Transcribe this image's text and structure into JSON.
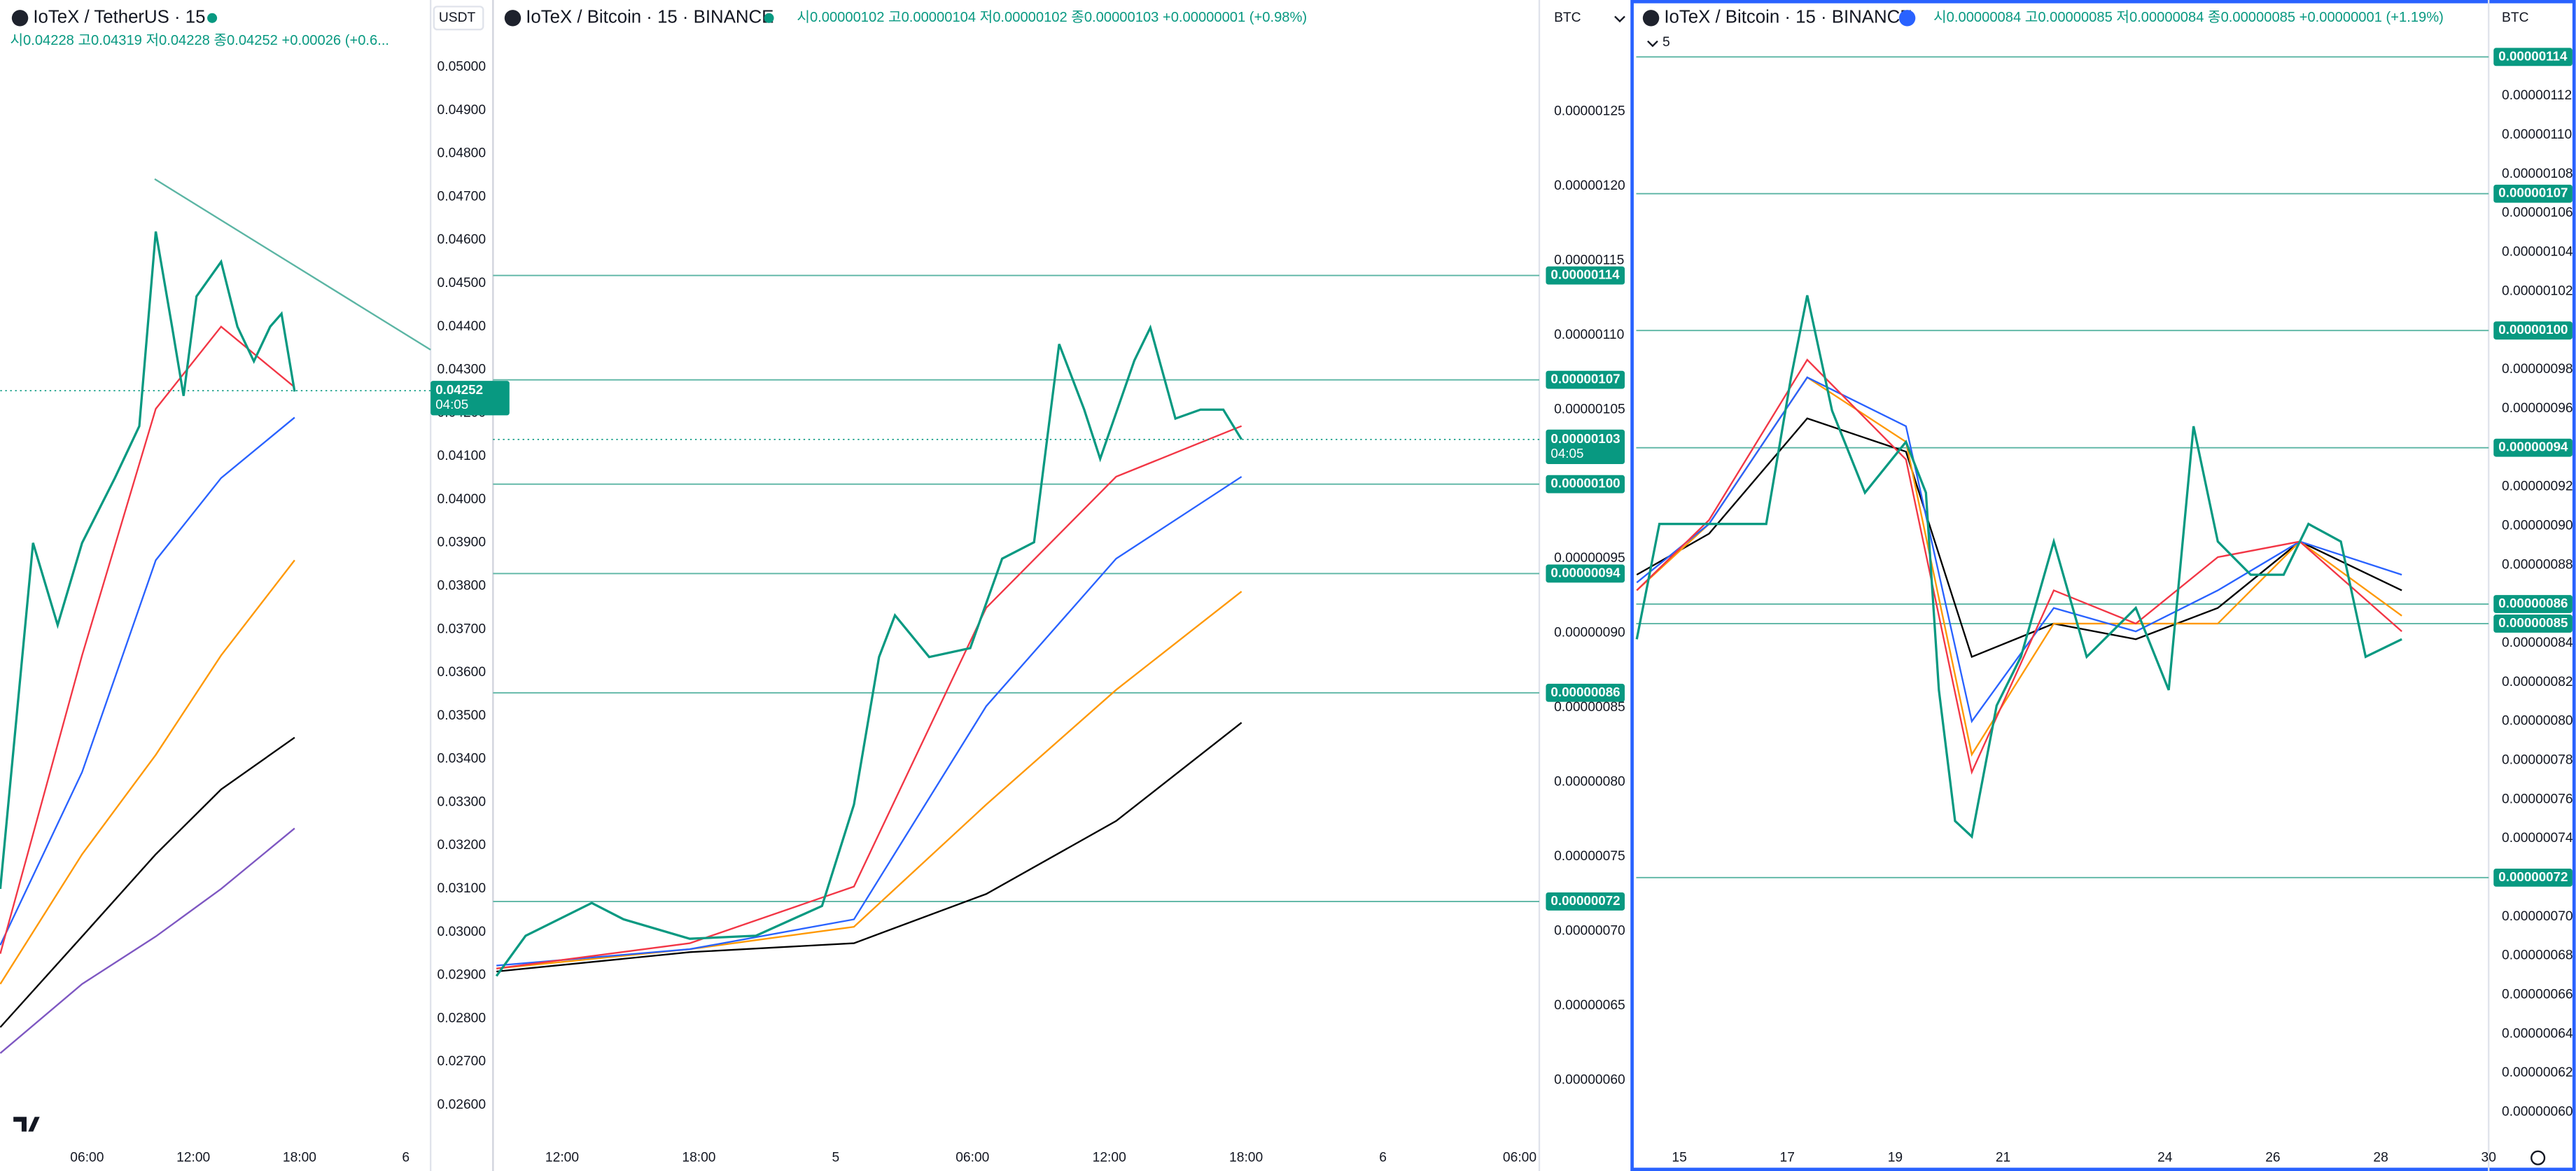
{
  "chart_data": [
    {
      "type": "line",
      "title": "IoTeX / TetherUS · 15",
      "subtitle": "시0.04228 고0.04319 저0.04228 종0.04252 +0.00026 (+0.6...",
      "currency": "USDT",
      "xlim": [
        1.1,
        25.4
      ],
      "ylim": [
        0.02516,
        0.05087
      ],
      "xticks": [
        {
          "value": 6,
          "label": "06:00"
        },
        {
          "value": 12,
          "label": "12:00"
        },
        {
          "value": 18,
          "label": "18:00"
        },
        {
          "value": 24,
          "label": "6"
        }
      ],
      "yticks": [
        {
          "value": 0.05,
          "label": "0.05000"
        },
        {
          "value": 0.049,
          "label": "0.04900"
        },
        {
          "value": 0.048,
          "label": "0.04800"
        },
        {
          "value": 0.047,
          "label": "0.04700"
        },
        {
          "value": 0.046,
          "label": "0.04600"
        },
        {
          "value": 0.045,
          "label": "0.04500"
        },
        {
          "value": 0.044,
          "label": "0.04400"
        },
        {
          "value": 0.043,
          "label": "0.04300"
        },
        {
          "value": 0.042,
          "label": "0.04200"
        },
        {
          "value": 0.041,
          "label": "0.04100"
        },
        {
          "value": 0.04,
          "label": "0.04000"
        },
        {
          "value": 0.039,
          "label": "0.03900"
        },
        {
          "value": 0.038,
          "label": "0.03800"
        },
        {
          "value": 0.037,
          "label": "0.03700"
        },
        {
          "value": 0.036,
          "label": "0.03600"
        },
        {
          "value": 0.035,
          "label": "0.03500"
        },
        {
          "value": 0.034,
          "label": "0.03400"
        },
        {
          "value": 0.033,
          "label": "0.03300"
        },
        {
          "value": 0.032,
          "label": "0.03200"
        },
        {
          "value": 0.031,
          "label": "0.03100"
        },
        {
          "value": 0.03,
          "label": "0.03000"
        },
        {
          "value": 0.029,
          "label": "0.02900"
        },
        {
          "value": 0.028,
          "label": "0.02800"
        },
        {
          "value": 0.027,
          "label": "0.02700"
        },
        {
          "value": 0.026,
          "label": "0.02600"
        }
      ],
      "series": [
        {
          "color": "#7e57c2",
          "x": [
            1.1,
            5.72,
            9.88,
            13.57,
            17.72
          ],
          "values": [
            0.0272,
            0.0288,
            0.0299,
            0.031,
            0.0324
          ]
        },
        {
          "color": "#000000",
          "x": [
            1.1,
            5.72,
            9.88,
            13.57,
            17.72
          ],
          "values": [
            0.0278,
            0.0299,
            0.0318,
            0.0333,
            0.0345
          ]
        },
        {
          "color": "#ff9800",
          "x": [
            1.1,
            5.72,
            9.88,
            13.57,
            17.72
          ],
          "values": [
            0.0288,
            0.0318,
            0.0341,
            0.0364,
            0.0386
          ]
        },
        {
          "color": "#2962ff",
          "x": [
            1.1,
            5.72,
            9.88,
            13.57,
            17.72
          ],
          "values": [
            0.0297,
            0.0337,
            0.0386,
            0.0405,
            0.0419
          ]
        },
        {
          "color": "#f23645",
          "x": [
            1.1,
            5.72,
            9.88,
            13.57,
            17.72
          ],
          "values": [
            0.0295,
            0.0364,
            0.0421,
            0.044,
            0.0426
          ]
        },
        {
          "color": "#089981",
          "x": [
            1.1,
            2.95,
            4.34,
            5.72,
            7.57,
            8.95,
            9.88,
            10.8,
            11.45,
            12.18,
            13.57,
            14.49,
            15.42,
            16.34,
            16.98,
            17.72
          ],
          "values": [
            0.031,
            0.039,
            0.0371,
            0.039,
            0.0405,
            0.0417,
            0.0462,
            0.044,
            0.0424,
            0.0447,
            0.0455,
            0.044,
            0.0432,
            0.044,
            0.0443,
            0.0425
          ]
        }
      ],
      "price_lines": [],
      "current": {
        "value": 0.04252,
        "label": "0.04252",
        "countdown": "04:05"
      }
    },
    {
      "type": "line",
      "title": "IoTeX / Bitcoin · 15 · BINANCE",
      "subtitle": "시0.00000102 고0.00000104 저0.00000102 종0.00000103 +0.00000001 (+0.98%)",
      "currency": "BTC",
      "xlim": [
        8.97,
        54.86
      ],
      "ylim": [
        5.59e-07,
        1.305e-06
      ],
      "xticks": [
        {
          "value": 12,
          "label": "12:00"
        },
        {
          "value": 18,
          "label": "18:00"
        },
        {
          "value": 24,
          "label": "5"
        },
        {
          "value": 30,
          "label": "06:00"
        },
        {
          "value": 36,
          "label": "12:00"
        },
        {
          "value": 42,
          "label": "18:00"
        },
        {
          "value": 48,
          "label": "6"
        },
        {
          "value": 54,
          "label": "06:00"
        }
      ],
      "yticks": [
        {
          "value": 1.25e-06,
          "label": "0.00000125"
        },
        {
          "value": 1.2e-06,
          "label": "0.00000120"
        },
        {
          "value": 1.15e-06,
          "label": "0.00000115"
        },
        {
          "value": 1.1e-06,
          "label": "0.00000110"
        },
        {
          "value": 1.05e-06,
          "label": "0.00000105"
        },
        {
          "value": 9.5e-07,
          "label": "0.00000095"
        },
        {
          "value": 9e-07,
          "label": "0.00000090"
        },
        {
          "value": 8.5e-07,
          "label": "0.00000085"
        },
        {
          "value": 8e-07,
          "label": "0.00000080"
        },
        {
          "value": 7.5e-07,
          "label": "0.00000075"
        },
        {
          "value": 7e-07,
          "label": "0.00000070"
        },
        {
          "value": 6.5e-07,
          "label": "0.00000065"
        },
        {
          "value": 6e-07,
          "label": "0.00000060"
        }
      ],
      "series": [
        {
          "color": "#000000",
          "x": [
            9.12,
            17.6,
            24.8,
            30.6,
            36.3,
            41.8
          ],
          "values": [
            6.73e-07,
            6.86e-07,
            6.92e-07,
            7.25e-07,
            7.74e-07,
            8.4e-07
          ]
        },
        {
          "color": "#ff9800",
          "x": [
            9.12,
            17.6,
            24.8,
            30.6,
            36.3,
            41.8
          ],
          "values": [
            6.75e-07,
            6.88e-07,
            7.03e-07,
            7.85e-07,
            8.62e-07,
            9.28e-07
          ]
        },
        {
          "color": "#2962ff",
          "x": [
            9.12,
            17.6,
            24.8,
            30.6,
            36.3,
            41.8
          ],
          "values": [
            6.77e-07,
            6.88e-07,
            7.08e-07,
            8.51e-07,
            9.5e-07,
            1.005e-06
          ]
        },
        {
          "color": "#f23645",
          "x": [
            9.12,
            17.6,
            24.8,
            30.6,
            36.3,
            41.8
          ],
          "values": [
            6.75e-07,
            6.92e-07,
            7.3e-07,
            9.17e-07,
            1.005e-06,
            1.039e-06
          ]
        },
        {
          "color": "#089981",
          "x": [
            9.12,
            10.4,
            13.3,
            14.7,
            17.6,
            20.5,
            23.4,
            24.8,
            25.9,
            26.6,
            28.1,
            29.9,
            31.3,
            32.7,
            33.8,
            34.9,
            35.6,
            37.1,
            37.8,
            38.9,
            40.0,
            41.0,
            41.8
          ],
          "values": [
            6.7e-07,
            6.97e-07,
            7.19e-07,
            7.08e-07,
            6.95e-07,
            6.97e-07,
            7.17e-07,
            7.85e-07,
            8.84e-07,
            9.12e-07,
            8.84e-07,
            8.9e-07,
            9.5e-07,
            9.61e-07,
            1.094e-06,
            1.05e-06,
            1.017e-06,
            1.083e-06,
            1.105e-06,
            1.044e-06,
            1.05e-06,
            1.05e-06,
            1.03e-06
          ]
        }
      ],
      "price_lines": [
        {
          "value": 1.14e-06,
          "label": "0.00000114"
        },
        {
          "value": 1.07e-06,
          "label": "0.00000107"
        },
        {
          "value": 1e-06,
          "label": "0.00000100"
        },
        {
          "value": 9.4e-07,
          "label": "0.00000094"
        },
        {
          "value": 8.6e-07,
          "label": "0.00000086"
        },
        {
          "value": 7.2e-07,
          "label": "0.00000072"
        }
      ],
      "current": {
        "value": 1.03e-06,
        "label": "0.00000103",
        "countdown": "04:05"
      }
    },
    {
      "type": "line",
      "title": "IoTeX / Bitcoin · 15 · BINANCE",
      "subtitle": "시0.00000084 고0.00000085 저0.00000084 종0.00000085 +0.00000001 (+1.19%)",
      "currency": "BTC",
      "interval": "5",
      "xlim": [
        14.2,
        30.0
      ],
      "ylim": [
        5.85e-07,
        1.154e-06
      ],
      "xticks": [
        15,
        17,
        19,
        21,
        24,
        26,
        28,
        30
      ],
      "yticks": [
        {
          "value": 1.12e-06,
          "label": "0.00000112"
        },
        {
          "value": 1.1e-06,
          "label": "0.00000110"
        },
        {
          "value": 1.08e-06,
          "label": "0.00000108"
        },
        {
          "value": 1.06e-06,
          "label": "0.00000106"
        },
        {
          "value": 1.04e-06,
          "label": "0.00000104"
        },
        {
          "value": 1.02e-06,
          "label": "0.00000102"
        },
        {
          "value": 9.8e-07,
          "label": "0.00000098"
        },
        {
          "value": 9.6e-07,
          "label": "0.00000096"
        },
        {
          "value": 9.2e-07,
          "label": "0.00000092"
        },
        {
          "value": 9e-07,
          "label": "0.00000090"
        },
        {
          "value": 8.8e-07,
          "label": "0.00000088"
        },
        {
          "value": 8.4e-07,
          "label": "0.00000084"
        },
        {
          "value": 8.2e-07,
          "label": "0.00000082"
        },
        {
          "value": 8e-07,
          "label": "0.00000080"
        },
        {
          "value": 7.8e-07,
          "label": "0.00000078"
        },
        {
          "value": 7.6e-07,
          "label": "0.00000076"
        },
        {
          "value": 7.4e-07,
          "label": "0.00000074"
        },
        {
          "value": 7e-07,
          "label": "0.00000070"
        },
        {
          "value": 6.8e-07,
          "label": "0.00000068"
        },
        {
          "value": 6.6e-07,
          "label": "0.00000066"
        },
        {
          "value": 6.4e-07,
          "label": "0.00000064"
        },
        {
          "value": 6.2e-07,
          "label": "0.00000062"
        },
        {
          "value": 6e-07,
          "label": "0.00000060"
        }
      ],
      "series": [
        {
          "color": "#000000",
          "x": [
            14.21,
            15.55,
            17.37,
            19.2,
            20.42,
            21.94,
            23.46,
            24.98,
            26.5,
            28.39
          ],
          "values": [
            8.75e-07,
            8.96e-07,
            9.55e-07,
            9.38e-07,
            8.33e-07,
            8.5e-07,
            8.42e-07,
            8.58e-07,
            8.92e-07,
            8.67e-07
          ]
        },
        {
          "color": "#ff9800",
          "x": [
            14.21,
            15.55,
            17.37,
            19.2,
            20.42,
            21.94,
            23.46,
            24.98,
            26.5,
            28.39
          ],
          "values": [
            8.67e-07,
            9.01e-07,
            9.76e-07,
            9.43e-07,
            7.83e-07,
            8.5e-07,
            8.5e-07,
            8.5e-07,
            8.92e-07,
            8.54e-07
          ]
        },
        {
          "color": "#2962ff",
          "x": [
            14.21,
            15.55,
            17.37,
            19.2,
            20.42,
            21.94,
            23.46,
            24.98,
            26.5,
            28.39
          ],
          "values": [
            8.71e-07,
            9.01e-07,
            9.76e-07,
            9.51e-07,
            8e-07,
            8.58e-07,
            8.46e-07,
            8.67e-07,
            8.92e-07,
            8.75e-07
          ]
        },
        {
          "color": "#f23645",
          "x": [
            14.21,
            15.55,
            17.37,
            19.2,
            20.42,
            21.94,
            23.46,
            24.98,
            26.5,
            28.39
          ],
          "values": [
            8.67e-07,
            9.03e-07,
            9.85e-07,
            9.34e-07,
            7.74e-07,
            8.67e-07,
            8.5e-07,
            8.84e-07,
            8.92e-07,
            8.46e-07
          ]
        },
        {
          "color": "#089981",
          "x": [
            14.21,
            14.63,
            15.55,
            16.61,
            17.07,
            17.37,
            17.83,
            18.44,
            19.2,
            19.57,
            19.81,
            20.11,
            20.42,
            20.88,
            21.33,
            21.94,
            22.55,
            23.46,
            24.07,
            24.53,
            24.98,
            25.59,
            26.2,
            26.66,
            27.26,
            27.72,
            28.39
          ],
          "values": [
            8.42e-07,
            9.01e-07,
            9.01e-07,
            9.01e-07,
            9.76e-07,
            1.018e-06,
            9.59e-07,
            9.17e-07,
            9.43e-07,
            9.17e-07,
            8.16e-07,
            7.49e-07,
            7.41e-07,
            8.08e-07,
            8.33e-07,
            8.92e-07,
            8.33e-07,
            8.58e-07,
            8.16e-07,
            9.51e-07,
            8.92e-07,
            8.75e-07,
            8.75e-07,
            9.01e-07,
            8.92e-07,
            8.33e-07,
            8.42e-07
          ]
        }
      ],
      "price_lines": [
        {
          "value": 1.14e-06,
          "label": "0.00000114"
        },
        {
          "value": 1.07e-06,
          "label": "0.00000107"
        },
        {
          "value": 1e-06,
          "label": "0.00000100"
        },
        {
          "value": 9.4e-07,
          "label": "0.00000094"
        },
        {
          "value": 8.6e-07,
          "label": "0.00000086"
        },
        {
          "value": 8.5e-07,
          "label": "0.00000085"
        },
        {
          "value": 7.2e-07,
          "label": "0.00000072"
        }
      ]
    }
  ]
}
